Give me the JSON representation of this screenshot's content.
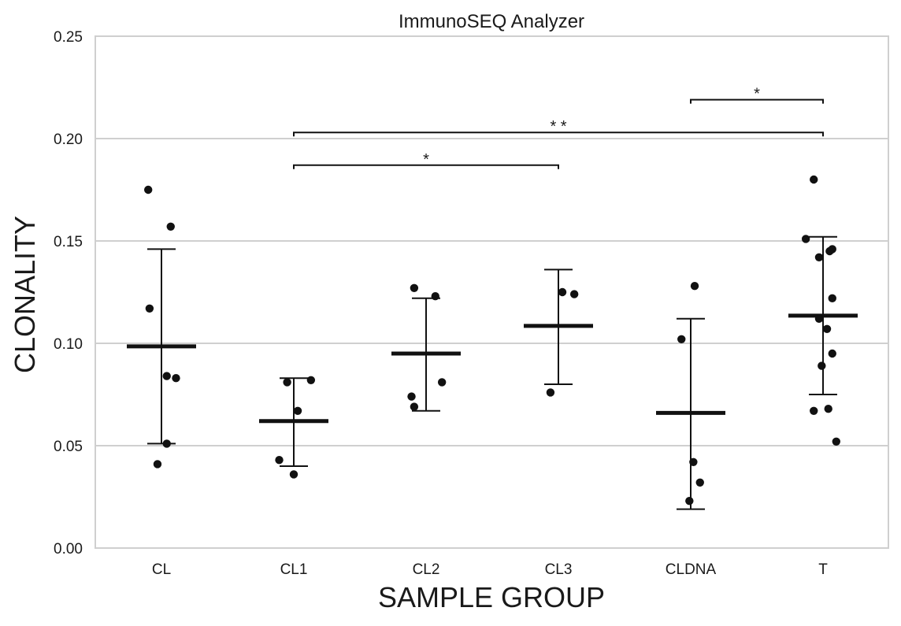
{
  "chart_data": {
    "type": "scatter",
    "title": "ImmunoSEQ Analyzer",
    "xlabel": "SAMPLE GROUP",
    "ylabel": "CLONALITY",
    "ylim": [
      0,
      0.25
    ],
    "yticks": [
      "0.00",
      "0.05",
      "0.10",
      "0.15",
      "0.20",
      "0.25"
    ],
    "grid": true,
    "categories": [
      "CL",
      "CL1",
      "CL2",
      "CL3",
      "CLDNA",
      "T"
    ],
    "groups": [
      {
        "name": "CL",
        "mean": 0.0985,
        "err_low": 0.051,
        "err_high": 0.146,
        "points": [
          {
            "x": -0.1,
            "y": 0.175
          },
          {
            "x": 0.07,
            "y": 0.157
          },
          {
            "x": -0.09,
            "y": 0.117
          },
          {
            "x": 0.04,
            "y": 0.084
          },
          {
            "x": 0.11,
            "y": 0.083
          },
          {
            "x": 0.04,
            "y": 0.051
          },
          {
            "x": -0.03,
            "y": 0.041
          }
        ]
      },
      {
        "name": "CL1",
        "mean": 0.062,
        "err_low": 0.04,
        "err_high": 0.083,
        "points": [
          {
            "x": -0.05,
            "y": 0.081
          },
          {
            "x": 0.13,
            "y": 0.082
          },
          {
            "x": 0.03,
            "y": 0.067
          },
          {
            "x": -0.11,
            "y": 0.043
          },
          {
            "x": 0.0,
            "y": 0.036
          }
        ]
      },
      {
        "name": "CL2",
        "mean": 0.095,
        "err_low": 0.067,
        "err_high": 0.122,
        "points": [
          {
            "x": -0.09,
            "y": 0.127
          },
          {
            "x": 0.07,
            "y": 0.123
          },
          {
            "x": 0.12,
            "y": 0.081
          },
          {
            "x": -0.11,
            "y": 0.074
          },
          {
            "x": -0.09,
            "y": 0.069
          }
        ]
      },
      {
        "name": "CL3",
        "mean": 0.1085,
        "err_low": 0.08,
        "err_high": 0.136,
        "points": [
          {
            "x": 0.03,
            "y": 0.125
          },
          {
            "x": 0.12,
            "y": 0.124
          },
          {
            "x": -0.06,
            "y": 0.076
          }
        ]
      },
      {
        "name": "CLDNA",
        "mean": 0.066,
        "err_low": 0.019,
        "err_high": 0.112,
        "points": [
          {
            "x": 0.03,
            "y": 0.128
          },
          {
            "x": -0.07,
            "y": 0.102
          },
          {
            "x": 0.02,
            "y": 0.042
          },
          {
            "x": 0.07,
            "y": 0.032
          },
          {
            "x": -0.01,
            "y": 0.023
          }
        ]
      },
      {
        "name": "T",
        "mean": 0.1135,
        "err_low": 0.075,
        "err_high": 0.152,
        "points": [
          {
            "x": -0.07,
            "y": 0.18
          },
          {
            "x": -0.13,
            "y": 0.151
          },
          {
            "x": 0.07,
            "y": 0.146
          },
          {
            "x": 0.05,
            "y": 0.145
          },
          {
            "x": -0.03,
            "y": 0.142
          },
          {
            "x": 0.07,
            "y": 0.122
          },
          {
            "x": -0.03,
            "y": 0.112
          },
          {
            "x": 0.03,
            "y": 0.107
          },
          {
            "x": 0.07,
            "y": 0.095
          },
          {
            "x": -0.01,
            "y": 0.089
          },
          {
            "x": 0.04,
            "y": 0.068
          },
          {
            "x": -0.07,
            "y": 0.067
          },
          {
            "x": 0.1,
            "y": 0.052
          }
        ]
      }
    ],
    "significance": [
      {
        "from": "CLDNA",
        "to": "T",
        "y": 0.219,
        "label": "*"
      },
      {
        "from": "CL1",
        "to": "T",
        "y": 0.203,
        "label": "* *"
      },
      {
        "from": "CL1",
        "to": "CL3",
        "y": 0.187,
        "label": "*"
      }
    ]
  }
}
